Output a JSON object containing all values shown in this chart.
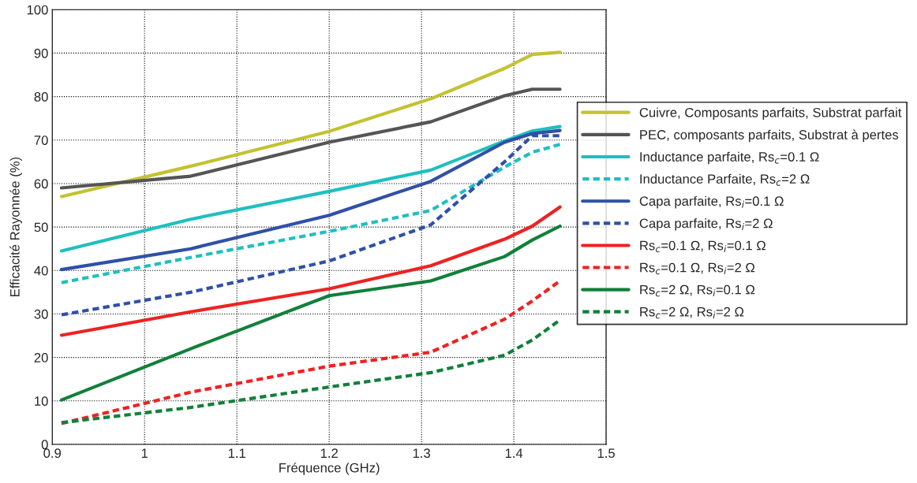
{
  "chart_data": {
    "type": "line",
    "xlabel": "Fréquence (GHz)",
    "ylabel": "Efficacité Rayonnée (%)",
    "x": [
      0.91,
      1.05,
      1.2,
      1.31,
      1.39,
      1.42,
      1.45
    ],
    "xlim": [
      0.9,
      1.5
    ],
    "xticks": [
      0.9,
      1,
      1.1,
      1.2,
      1.3,
      1.4,
      1.5
    ],
    "ylim": [
      0,
      100
    ],
    "yticks": [
      0,
      10,
      20,
      30,
      40,
      50,
      60,
      70,
      80,
      90,
      100
    ],
    "grid": true,
    "legend": "right",
    "marker": "none",
    "series": [
      {
        "name": "Cuivre, Composants parfaits, Substrat parfait",
        "color": "#c3c232",
        "line_style": "solid",
        "values": [
          57,
          64,
          72,
          79.5,
          86.5,
          89.7,
          90.2
        ]
      },
      {
        "name": "PEC, composants parfaits, Substrat à pertes",
        "color": "#555555",
        "line_style": "solid",
        "values": [
          59,
          61.7,
          69.5,
          74.2,
          80.2,
          81.7,
          81.7
        ]
      },
      {
        "name": "Inductance parfaite, Rs$_{c}$=0.1 Ω",
        "color": "#1fbfbf",
        "line_style": "solid",
        "values": [
          44.5,
          51.8,
          58.2,
          63.1,
          69.8,
          72.1,
          73.1
        ]
      },
      {
        "name": "Inductance Parfaite, Rs$_{c}$=2 Ω",
        "color": "#1fbfbf",
        "line_style": "dashed",
        "values": [
          37.2,
          43,
          49,
          53.8,
          63.8,
          67.2,
          69
        ]
      },
      {
        "name": "Capa parfaite, Rs$_{i}$=0.1 Ω",
        "color": "#3050a8",
        "line_style": "solid",
        "values": [
          40.2,
          45,
          52.7,
          60.5,
          69.5,
          71.5,
          72.2
        ]
      },
      {
        "name": "Capa parfaite, Rs$_{i}$=2 Ω",
        "color": "#3050a8",
        "line_style": "dashed",
        "values": [
          29.8,
          35,
          42.2,
          50.5,
          65,
          71,
          71
        ]
      },
      {
        "name": "Rs$_{c}$=0.1 Ω, Rs$_{i}$=0.1 Ω",
        "color": "#ee2222",
        "line_style": "solid",
        "values": [
          25.1,
          30.5,
          35.8,
          41.1,
          47.2,
          50.2,
          54.6
        ]
      },
      {
        "name": "Rs$_{c}$=0.1 Ω, Rs$_{i}$=2 Ω",
        "color": "#ee2222",
        "line_style": "dashed",
        "values": [
          4.8,
          12,
          18,
          21.2,
          28.8,
          33,
          37.6
        ]
      },
      {
        "name": "Rs$_{c}$=2 Ω, Rs$_{i}$=0.1 Ω",
        "color": "#11803a",
        "line_style": "solid",
        "values": [
          10.2,
          22,
          34.2,
          37.6,
          43.2,
          47,
          50.2
        ]
      },
      {
        "name": "Rs$_{c}$=2 Ω, Rs$_{i}$=2 Ω",
        "color": "#11803a",
        "line_style": "dashed",
        "values": [
          5,
          8.5,
          13.2,
          16.5,
          20.5,
          24,
          28.6
        ]
      }
    ]
  }
}
